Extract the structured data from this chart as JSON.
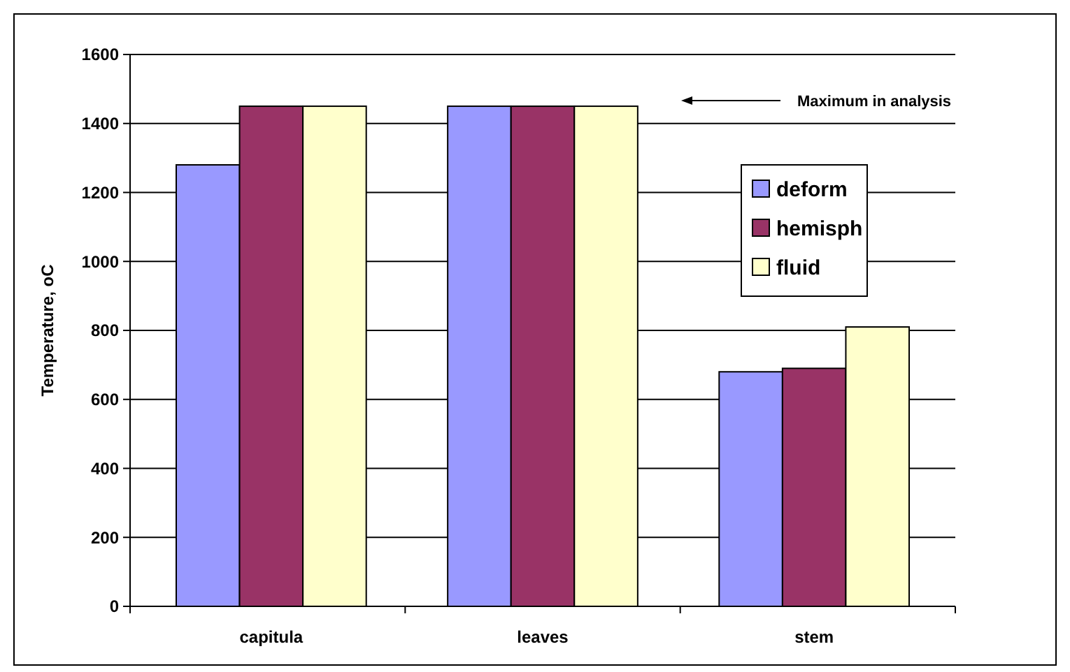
{
  "chart_data": {
    "type": "bar",
    "ylabel": "Temperature, oC",
    "categories": [
      "capitula",
      "leaves",
      "stem"
    ],
    "series": [
      {
        "name": "deform",
        "color": "#9999ff",
        "values": [
          1280,
          1450,
          680
        ]
      },
      {
        "name": "hemisph",
        "color": "#993366",
        "values": [
          1450,
          1450,
          690
        ]
      },
      {
        "name": "fluid",
        "color": "#ffffcc",
        "values": [
          1450,
          1450,
          810
        ]
      }
    ],
    "ylim": [
      0,
      1600
    ],
    "yticks": [
      0,
      200,
      400,
      600,
      800,
      1000,
      1200,
      1400,
      1600
    ],
    "grid": "y",
    "legend": "right",
    "annotations": [
      "Maximum in analysis"
    ]
  }
}
